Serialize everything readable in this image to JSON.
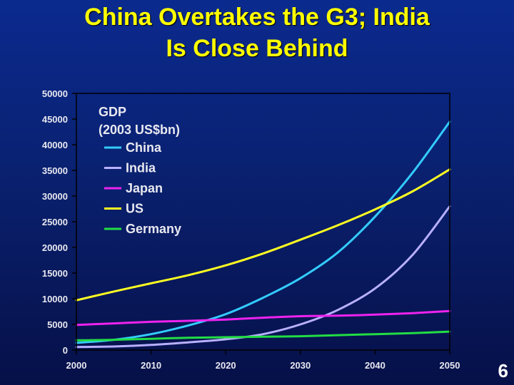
{
  "title_line1": "China Overtakes the G3; India",
  "title_line2": "Is Close Behind",
  "page_number": "6",
  "chart_data": {
    "type": "line",
    "legend_title_line1": "GDP",
    "legend_title_line2": "(2003 US$bn)",
    "legend_placement": "top-left",
    "xlim": [
      2000,
      2050
    ],
    "ylim": [
      0,
      50000
    ],
    "x_ticks": [
      "2000",
      "2010",
      "2020",
      "2030",
      "2040",
      "2050"
    ],
    "y_ticks": [
      "0",
      "5000",
      "10000",
      "15000",
      "20000",
      "25000",
      "30000",
      "35000",
      "40000",
      "45000",
      "50000"
    ],
    "x": [
      2000,
      2005,
      2010,
      2015,
      2020,
      2025,
      2030,
      2035,
      2040,
      2045,
      2050
    ],
    "series": [
      {
        "name": "China",
        "color": "#33ccff",
        "values": [
          1400,
          2000,
          3100,
          4800,
          7000,
          10200,
          14000,
          19000,
          26000,
          34500,
          44500
        ]
      },
      {
        "name": "India",
        "color": "#b8b0ff",
        "values": [
          600,
          700,
          1000,
          1500,
          2100,
          3100,
          5000,
          7800,
          12000,
          18500,
          28000
        ]
      },
      {
        "name": "Japan",
        "color": "#ee22ee",
        "values": [
          4900,
          5200,
          5500,
          5700,
          5950,
          6300,
          6600,
          6700,
          6900,
          7200,
          7600
        ]
      },
      {
        "name": "US",
        "color": "#ffff22",
        "values": [
          9700,
          11400,
          13000,
          14600,
          16500,
          18800,
          21500,
          24300,
          27400,
          30900,
          35200
        ]
      },
      {
        "name": "Germany",
        "color": "#22dd44",
        "values": [
          1900,
          2000,
          2200,
          2400,
          2500,
          2600,
          2700,
          2900,
          3100,
          3300,
          3600
        ]
      }
    ]
  }
}
